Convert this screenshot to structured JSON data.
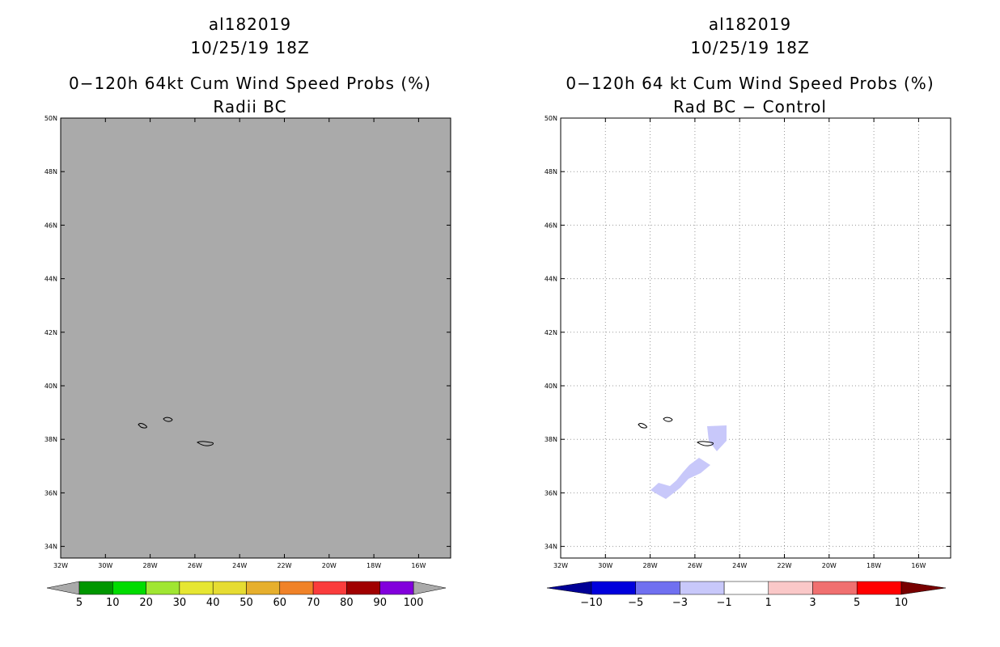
{
  "left_panel": {
    "title_lines": [
      "al182019",
      "10/25/19 18Z",
      "0−120h 64kt Cum Wind Speed Probs (%)",
      "Radii BC"
    ],
    "background_color": "#aaaaaa",
    "lat_labels": [
      "50N",
      "48N",
      "46N",
      "44N",
      "42N",
      "40N",
      "38N",
      "36N",
      "34N"
    ],
    "lon_labels": [
      "32W",
      "30W",
      "28W",
      "26W",
      "24W",
      "22W",
      "20W",
      "18W",
      "16W"
    ],
    "colorbar": {
      "colors": [
        "#009600",
        "#00dc00",
        "#a0e632",
        "#e6e632",
        "#e6dc32",
        "#e6af2d",
        "#f08228",
        "#fa3c3c",
        "#a00000",
        "#8200dc"
      ],
      "labels": [
        "5",
        "10",
        "20",
        "30",
        "40",
        "50",
        "60",
        "70",
        "80",
        "90",
        "100"
      ],
      "end_color": "#aaaaaa"
    }
  },
  "right_panel": {
    "title_lines": [
      "al182019",
      "10/25/19 18Z",
      "0−120h 64 kt Cum Wind Speed Probs (%)",
      "Rad BC − Control"
    ],
    "background_color": "#ffffff",
    "lat_labels": [
      "50N",
      "48N",
      "46N",
      "44N",
      "42N",
      "40N",
      "38N",
      "36N",
      "34N"
    ],
    "lon_labels": [
      "32W",
      "30W",
      "28W",
      "26W",
      "24W",
      "22W",
      "20W",
      "18W",
      "16W"
    ],
    "shading_color": "#c8c8fa",
    "colorbar": {
      "colors": [
        "#0000dc",
        "#7070f0",
        "#c8c8fa",
        "#ffffff",
        "#fac8c8",
        "#f07070",
        "#ff0000"
      ],
      "labels": [
        "−10",
        "−5",
        "−3",
        "−1",
        "1",
        "3",
        "5",
        "10"
      ],
      "low_end_color": "#000096",
      "high_end_color": "#780000"
    }
  }
}
